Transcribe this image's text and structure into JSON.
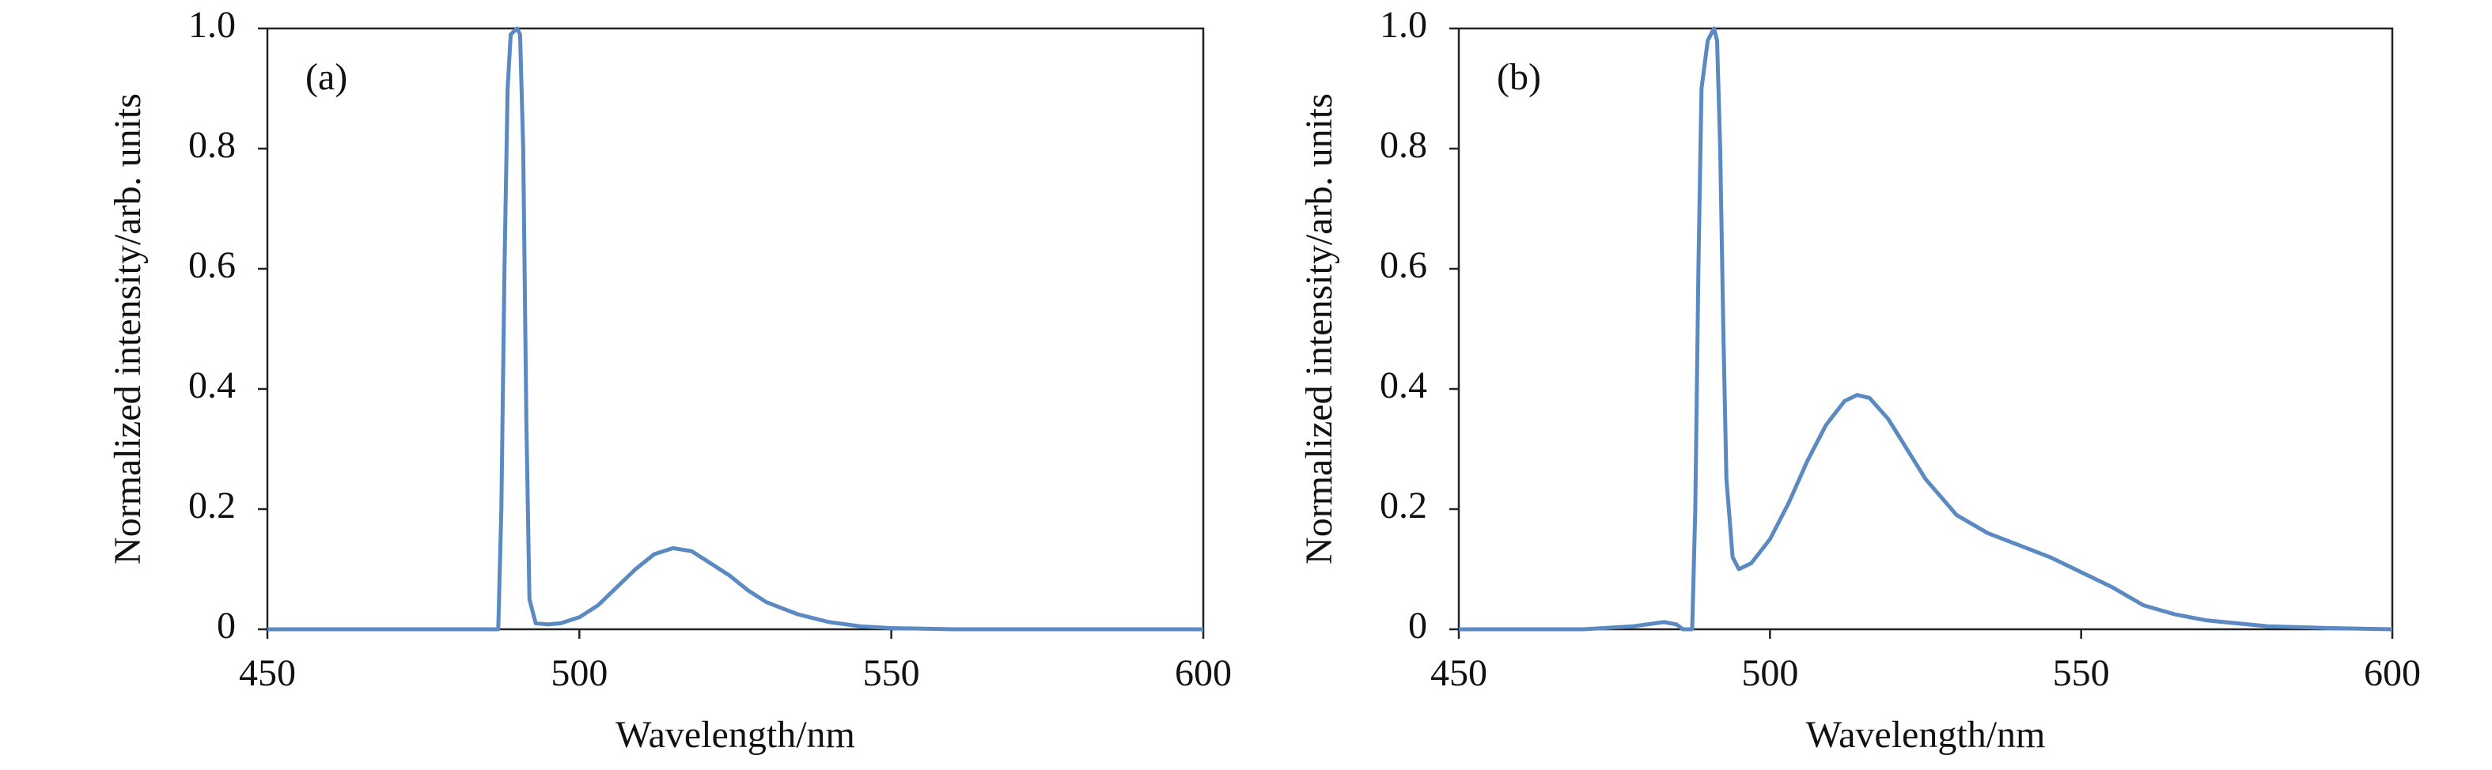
{
  "chart_data": [
    {
      "type": "line",
      "panel_label": "(a)",
      "xlabel": "Wavelength/nm",
      "ylabel": "Normalized intensity/arb. units",
      "color": "#5b8ac2",
      "grid": false,
      "x": [
        450,
        487,
        487.5,
        488,
        488.5,
        489,
        490,
        490.5,
        491,
        491.5,
        492,
        493,
        495,
        497,
        500,
        503,
        506,
        509,
        512,
        515,
        518,
        521,
        524,
        527,
        530,
        535,
        540,
        545,
        550,
        560,
        580,
        600
      ],
      "values": [
        0,
        0,
        0.2,
        0.6,
        0.9,
        0.99,
        1.0,
        0.99,
        0.8,
        0.35,
        0.05,
        0.01,
        0.008,
        0.01,
        0.02,
        0.04,
        0.07,
        0.1,
        0.125,
        0.135,
        0.13,
        0.11,
        0.09,
        0.065,
        0.045,
        0.025,
        0.012,
        0.005,
        0.002,
        0,
        0,
        0
      ],
      "xlim": [
        450,
        600
      ],
      "xticks": [
        450,
        500,
        550,
        600
      ],
      "ylim": [
        0,
        1
      ],
      "yticks": [
        0,
        0.2,
        0.4,
        0.6,
        0.8,
        {
          "value": 1,
          "label": "1.0"
        }
      ]
    },
    {
      "type": "line",
      "panel_label": "(b)",
      "xlabel": "Wavelength/nm",
      "ylabel": "Normalized intensity/arb. units",
      "color": "#5b8ac2",
      "grid": false,
      "x": [
        450,
        470,
        478,
        483,
        485,
        486,
        487.5,
        488,
        488.5,
        489,
        490,
        491,
        491.5,
        492,
        492.5,
        493,
        494,
        495,
        497,
        500,
        503,
        506,
        509,
        512,
        514,
        516,
        519,
        522,
        525,
        530,
        535,
        540,
        545,
        550,
        555,
        560,
        565,
        570,
        580,
        590,
        600
      ],
      "values": [
        0,
        0,
        0.005,
        0.012,
        0.008,
        0,
        0,
        0.2,
        0.6,
        0.9,
        0.98,
        1.0,
        0.98,
        0.8,
        0.5,
        0.25,
        0.12,
        0.1,
        0.11,
        0.15,
        0.21,
        0.28,
        0.34,
        0.38,
        0.39,
        0.385,
        0.35,
        0.3,
        0.25,
        0.19,
        0.16,
        0.14,
        0.12,
        0.095,
        0.07,
        0.04,
        0.025,
        0.015,
        0.005,
        0.002,
        0
      ],
      "xlim": [
        450,
        600
      ],
      "xticks": [
        450,
        500,
        550,
        600
      ],
      "ylim": [
        0,
        1
      ],
      "yticks": [
        0,
        0.2,
        0.4,
        0.6,
        0.8,
        {
          "value": 1,
          "label": "1.0"
        }
      ]
    }
  ]
}
